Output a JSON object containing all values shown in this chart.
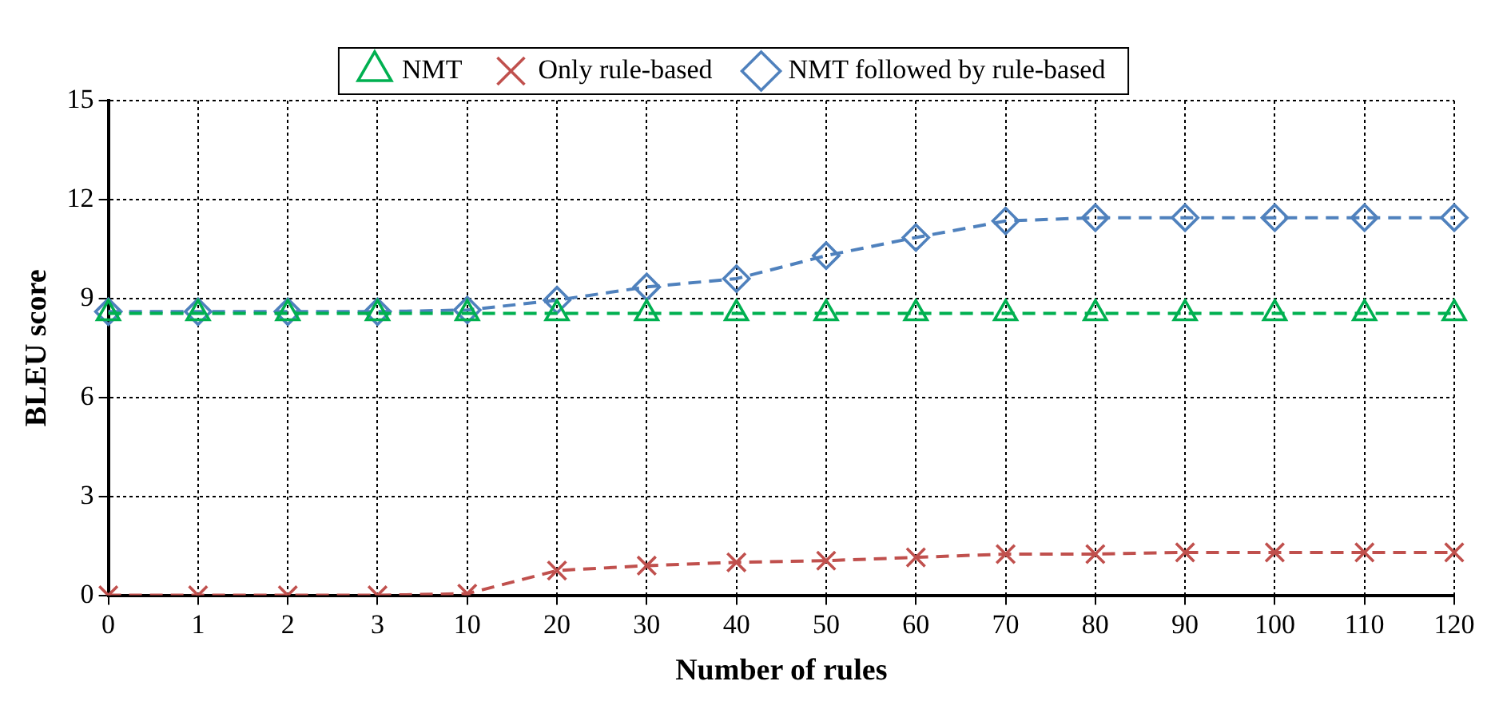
{
  "chart_data": {
    "type": "line",
    "xlabel": "Number of rules",
    "ylabel": "BLEU score",
    "categories": [
      "0",
      "1",
      "2",
      "3",
      "10",
      "20",
      "30",
      "40",
      "50",
      "60",
      "70",
      "80",
      "90",
      "100",
      "110",
      "120"
    ],
    "series": [
      {
        "name": "NMT",
        "color": "#00b050",
        "marker": "triangle",
        "line_style": "dashed",
        "values": [
          8.55,
          8.55,
          8.55,
          8.55,
          8.55,
          8.55,
          8.55,
          8.55,
          8.55,
          8.55,
          8.55,
          8.55,
          8.55,
          8.55,
          8.55,
          8.55
        ]
      },
      {
        "name": "Only rule-based",
        "color": "#c0504d",
        "marker": "cross",
        "line_style": "dashed",
        "values": [
          0,
          0,
          0,
          0,
          0.05,
          0.75,
          0.9,
          1.0,
          1.05,
          1.15,
          1.25,
          1.25,
          1.3,
          1.3,
          1.3,
          1.3
        ]
      },
      {
        "name": "NMT followed by rule-based",
        "color": "#4f81bd",
        "marker": "diamond",
        "line_style": "dashed",
        "values": [
          8.6,
          8.6,
          8.6,
          8.6,
          8.65,
          8.95,
          9.35,
          9.6,
          10.3,
          10.85,
          11.35,
          11.45,
          11.45,
          11.45,
          11.45,
          11.45
        ]
      }
    ],
    "ylim": [
      0,
      15
    ],
    "yticks": [
      0,
      3,
      6,
      9,
      12,
      15
    ],
    "grid": true,
    "legend": "top"
  }
}
